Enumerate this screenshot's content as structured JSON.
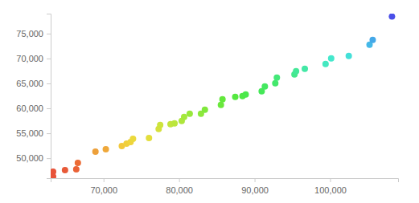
{
  "chart_data": {
    "type": "scatter",
    "x": [
      63320,
      63320,
      64900,
      66390,
      66600,
      68930,
      70300,
      72420,
      73050,
      73580,
      73900,
      76020,
      77300,
      77500,
      78870,
      79400,
      80350,
      80670,
      81410,
      82900,
      83420,
      85540,
      85750,
      87440,
      88400,
      88820,
      90940,
      91360,
      92740,
      92950,
      95280,
      95490,
      96650,
      99400,
      100140,
      102470,
      105220,
      105640,
      108190
    ],
    "values": [
      47290,
      46320,
      47610,
      47770,
      49060,
      51320,
      51800,
      52450,
      52940,
      53260,
      53900,
      54060,
      55840,
      56650,
      56810,
      56970,
      57450,
      58260,
      58900,
      58900,
      59710,
      60680,
      61810,
      62290,
      62450,
      62770,
      63420,
      64390,
      65030,
      66160,
      66810,
      67450,
      67940,
      68900,
      70030,
      70520,
      72770,
      73740,
      78420
    ],
    "colors": [
      "#e8533a",
      "#e8533a",
      "#e85a38",
      "#ea6236",
      "#ec6c35",
      "#eda03a",
      "#efa83a",
      "#f2c83c",
      "#f0cf3c",
      "#efd43c",
      "#ebd93c",
      "#e3de3c",
      "#d6e03c",
      "#cde43c",
      "#c2e43c",
      "#bbe63c",
      "#aee63c",
      "#a4e83c",
      "#98e83c",
      "#8de83c",
      "#80e83c",
      "#6ae83c",
      "#63e83c",
      "#55e840",
      "#4fe845",
      "#4ae84c",
      "#45e858",
      "#44e860",
      "#44e86c",
      "#44e878",
      "#44e88c",
      "#44e898",
      "#44e8a6",
      "#44e8c0",
      "#44e8cc",
      "#44e0d8",
      "#44b8e8",
      "#44a8e8",
      "#4a4fe8"
    ],
    "xlim": [
      63000,
      109000
    ],
    "xticks": [
      {
        "value": 70000,
        "label": "70,000"
      },
      {
        "value": 80000,
        "label": "80,000"
      },
      {
        "value": 90000,
        "label": "90,000"
      },
      {
        "value": 100000,
        "label": "100,000"
      }
    ],
    "ylim": [
      46000,
      79000
    ],
    "yticks": [
      {
        "value": 50000,
        "label": "50,000"
      },
      {
        "value": 55000,
        "label": "55,000"
      },
      {
        "value": 60000,
        "label": "60,000"
      },
      {
        "value": 65000,
        "label": "65,000"
      },
      {
        "value": 70000,
        "label": "70,000"
      },
      {
        "value": 75000,
        "label": "75,000"
      }
    ],
    "grid": false
  }
}
